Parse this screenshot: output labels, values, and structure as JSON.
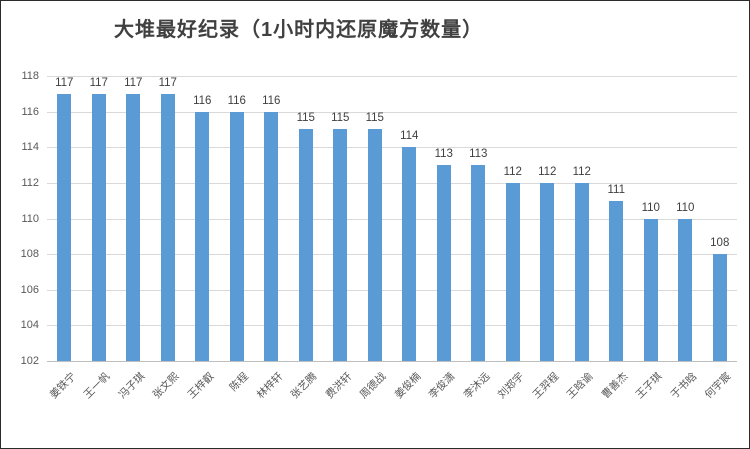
{
  "chart_data": {
    "type": "bar",
    "title": "大堆最好纪录（1小时内还原魔方数量）",
    "categories": [
      "姜铁宁",
      "王一帆",
      "冯子琪",
      "张文熙",
      "王梓叡",
      "陈程",
      "林梓轩",
      "张艺腾",
      "费洪轩",
      "周德战",
      "姜俊楠",
      "李俊潇",
      "李沐远",
      "刘郑宇",
      "王羿程",
      "王晗谕",
      "曹善杰",
      "王子琪",
      "于书晗",
      "何宇宸"
    ],
    "values": [
      117,
      117,
      117,
      117,
      116,
      116,
      116,
      115,
      115,
      115,
      114,
      113,
      113,
      112,
      112,
      112,
      111,
      110,
      110,
      108
    ],
    "xlabel": "",
    "ylabel": "",
    "ylim": [
      102,
      118
    ],
    "yticks": [
      102,
      104,
      106,
      108,
      110,
      112,
      114,
      116,
      118
    ],
    "grid": true,
    "legend_position": "none",
    "data_labels": true,
    "bar_color": "#5b9bd5",
    "gridline_color": "#d9d9d9",
    "axis_line_color": "#bfbfbf",
    "value_label_color": "#404040",
    "tick_label_color": "#595959",
    "title_color": "#404040"
  }
}
